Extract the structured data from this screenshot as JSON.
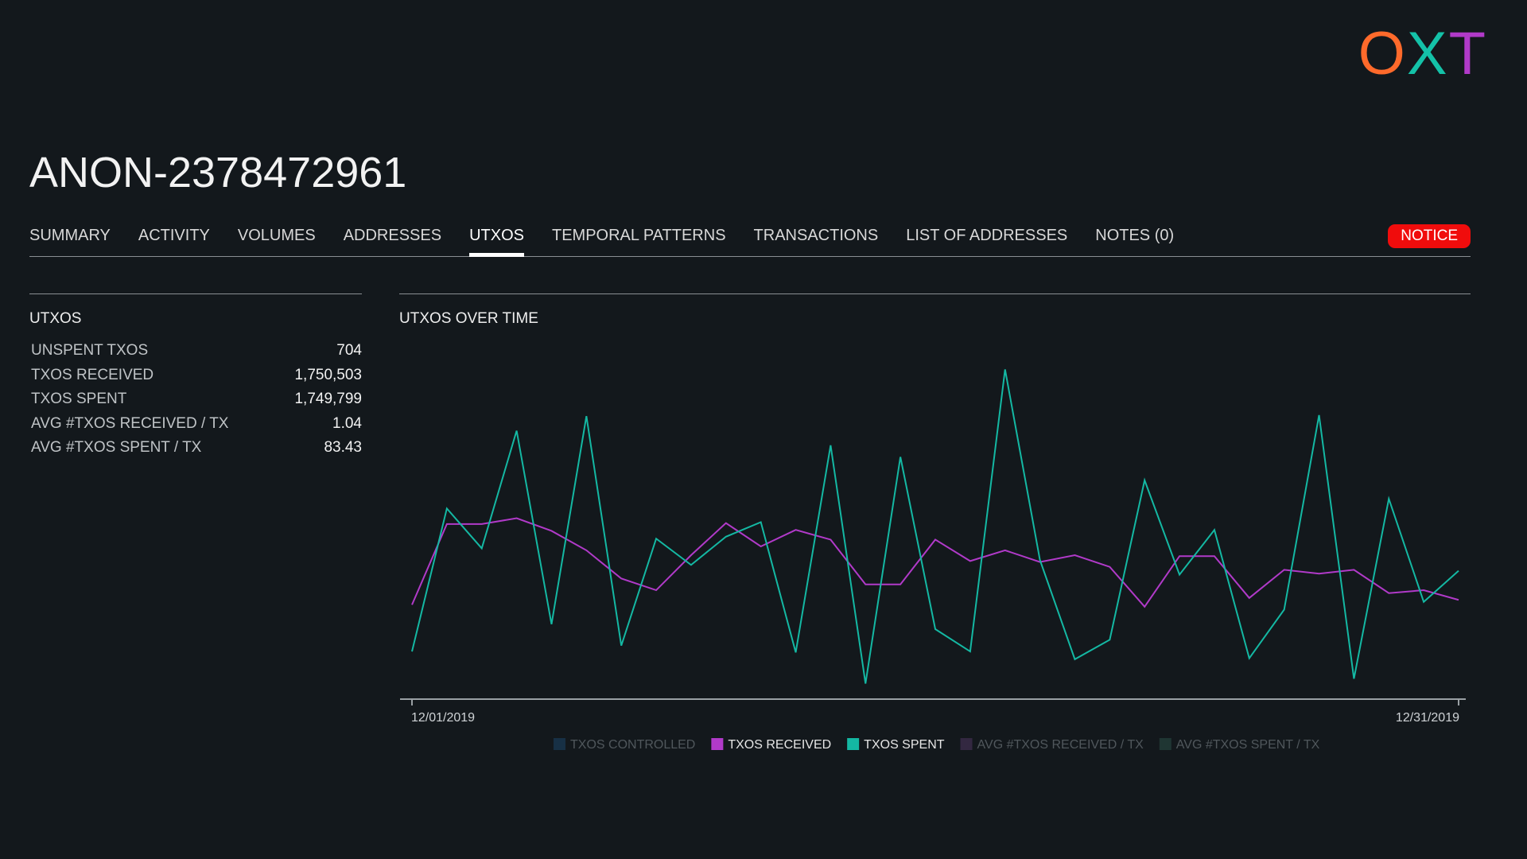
{
  "logo": "OXT",
  "title": "ANON-2378472961",
  "tabs": [
    "SUMMARY",
    "ACTIVITY",
    "VOLUMES",
    "ADDRESSES",
    "UTXOS",
    "TEMPORAL PATTERNS",
    "TRANSACTIONS",
    "LIST OF ADDRESSES",
    "NOTES (0)"
  ],
  "active_tab": 4,
  "notice": "NOTICE",
  "panel": {
    "title": "UTXOS",
    "rows": [
      [
        "UNSPENT TXOS",
        "704"
      ],
      [
        "TXOS RECEIVED",
        "1,750,503"
      ],
      [
        "TXOS SPENT",
        "1,749,799"
      ],
      [
        "AVG #TXOS RECEIVED / TX",
        "1.04"
      ],
      [
        "AVG #TXOS SPENT / TX",
        "83.43"
      ]
    ]
  },
  "chart_data": {
    "type": "line",
    "title": "UTXOS OVER TIME",
    "categories": [
      "12/01/2019",
      null,
      null,
      null,
      null,
      null,
      null,
      null,
      null,
      null,
      null,
      null,
      null,
      null,
      null,
      null,
      null,
      null,
      null,
      null,
      null,
      null,
      null,
      null,
      null,
      null,
      null,
      null,
      null,
      null,
      "12/31/2019"
    ],
    "ylim": [
      0,
      350
    ],
    "series": [
      {
        "name": "TXOS CONTROLLED",
        "color": "#1d4e78",
        "hidden": true
      },
      {
        "name": "TXOS RECEIVED",
        "color": "#b13ac9",
        "values": [
          97,
          180,
          180,
          186,
          173,
          153,
          124,
          112,
          148,
          181,
          157,
          174,
          164,
          118,
          118,
          164,
          142,
          153,
          141,
          148,
          136,
          95,
          147,
          147,
          104,
          133,
          129,
          133,
          109,
          112,
          102
        ]
      },
      {
        "name": "TXOS SPENT",
        "color": "#14b8a3",
        "values": [
          49,
          196,
          155,
          276,
          77,
          291,
          55,
          165,
          138,
          167,
          182,
          48,
          261,
          16,
          249,
          72,
          49,
          339,
          143,
          41,
          61,
          225,
          128,
          174,
          42,
          92,
          292,
          21,
          206,
          100,
          132
        ]
      },
      {
        "name": "AVG #TXOS RECEIVED / TX",
        "color": "#5a3c6e",
        "hidden": true
      },
      {
        "name": "AVG #TXOS SPENT / TX",
        "color": "#2f5a50",
        "hidden": true
      }
    ]
  }
}
